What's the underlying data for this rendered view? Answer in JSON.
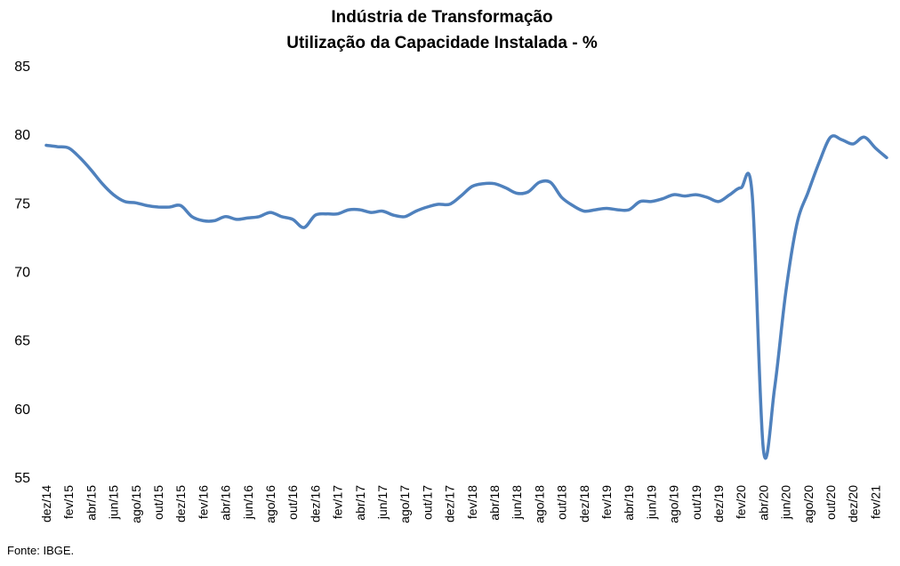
{
  "chart_data": {
    "type": "line",
    "title": "Indústria de Transformação",
    "subtitle": "Utilização da Capacidade Instalada - %",
    "xlabel": "",
    "ylabel": "",
    "ylim": [
      55,
      85
    ],
    "yticks": [
      55,
      60,
      65,
      70,
      75,
      80,
      85
    ],
    "grid": false,
    "legend": "none",
    "line_color": "#4F81BD",
    "x_tick_labels": [
      "dez/14",
      "fev/15",
      "abr/15",
      "jun/15",
      "ago/15",
      "out/15",
      "dez/15",
      "fev/16",
      "abr/16",
      "jun/16",
      "ago/16",
      "out/16",
      "dez/16",
      "fev/17",
      "abr/17",
      "jun/17",
      "ago/17",
      "out/17",
      "dez/17",
      "fev/18",
      "abr/18",
      "jun/18",
      "ago/18",
      "out/18",
      "dez/18",
      "fev/19",
      "abr/19",
      "jun/19",
      "ago/19",
      "out/19",
      "dez/19",
      "fev/20",
      "abr/20",
      "jun/20",
      "ago/20",
      "out/20",
      "dez/20",
      "fev/21"
    ],
    "series": [
      {
        "x": [
          "dez/14",
          "jan/15",
          "fev/15",
          "mar/15",
          "abr/15",
          "mai/15",
          "jun/15",
          "jul/15",
          "ago/15",
          "set/15",
          "out/15",
          "nov/15",
          "dez/15",
          "jan/16",
          "fev/16",
          "mar/16",
          "abr/16",
          "mai/16",
          "jun/16",
          "jul/16",
          "ago/16",
          "set/16",
          "out/16",
          "nov/16",
          "dez/16",
          "jan/17",
          "fev/17",
          "mar/17",
          "abr/17",
          "mai/17",
          "jun/17",
          "jul/17",
          "ago/17",
          "set/17",
          "out/17",
          "nov/17",
          "dez/17",
          "jan/18",
          "fev/18",
          "mar/18",
          "abr/18",
          "mai/18",
          "jun/18",
          "jul/18",
          "ago/18",
          "set/18",
          "out/18",
          "nov/18",
          "dez/18",
          "jan/19",
          "fev/19",
          "mar/19",
          "abr/19",
          "mai/19",
          "jun/19",
          "jul/19",
          "ago/19",
          "set/19",
          "out/19",
          "nov/19",
          "dez/19",
          "jan/20",
          "fev/20",
          "mar/20",
          "abr/20",
          "mai/20",
          "jun/20",
          "jul/20",
          "ago/20",
          "set/20",
          "out/20",
          "nov/20",
          "dez/20",
          "jan/21",
          "fev/21",
          "mar/21"
        ],
        "values": [
          79.2,
          79.1,
          79.0,
          78.3,
          77.4,
          76.4,
          75.6,
          75.1,
          75.0,
          74.8,
          74.7,
          74.7,
          74.8,
          74.0,
          73.7,
          73.7,
          74.0,
          73.8,
          73.9,
          74.0,
          74.3,
          74.0,
          73.8,
          73.2,
          74.1,
          74.2,
          74.2,
          74.5,
          74.5,
          74.3,
          74.4,
          74.1,
          74.0,
          74.4,
          74.7,
          74.9,
          74.9,
          75.5,
          76.2,
          76.4,
          76.4,
          76.1,
          75.7,
          75.8,
          76.5,
          76.5,
          75.4,
          74.8,
          74.4,
          74.5,
          74.6,
          74.5,
          74.5,
          75.1,
          75.1,
          75.3,
          75.6,
          75.5,
          75.6,
          75.4,
          75.1,
          75.6,
          76.1,
          75.6,
          57.0,
          61.5,
          68.5,
          73.5,
          75.8,
          78.0,
          79.8,
          79.6,
          79.3,
          79.8,
          79.0,
          78.3
        ]
      }
    ]
  },
  "source_note": "Fonte: IBGE."
}
